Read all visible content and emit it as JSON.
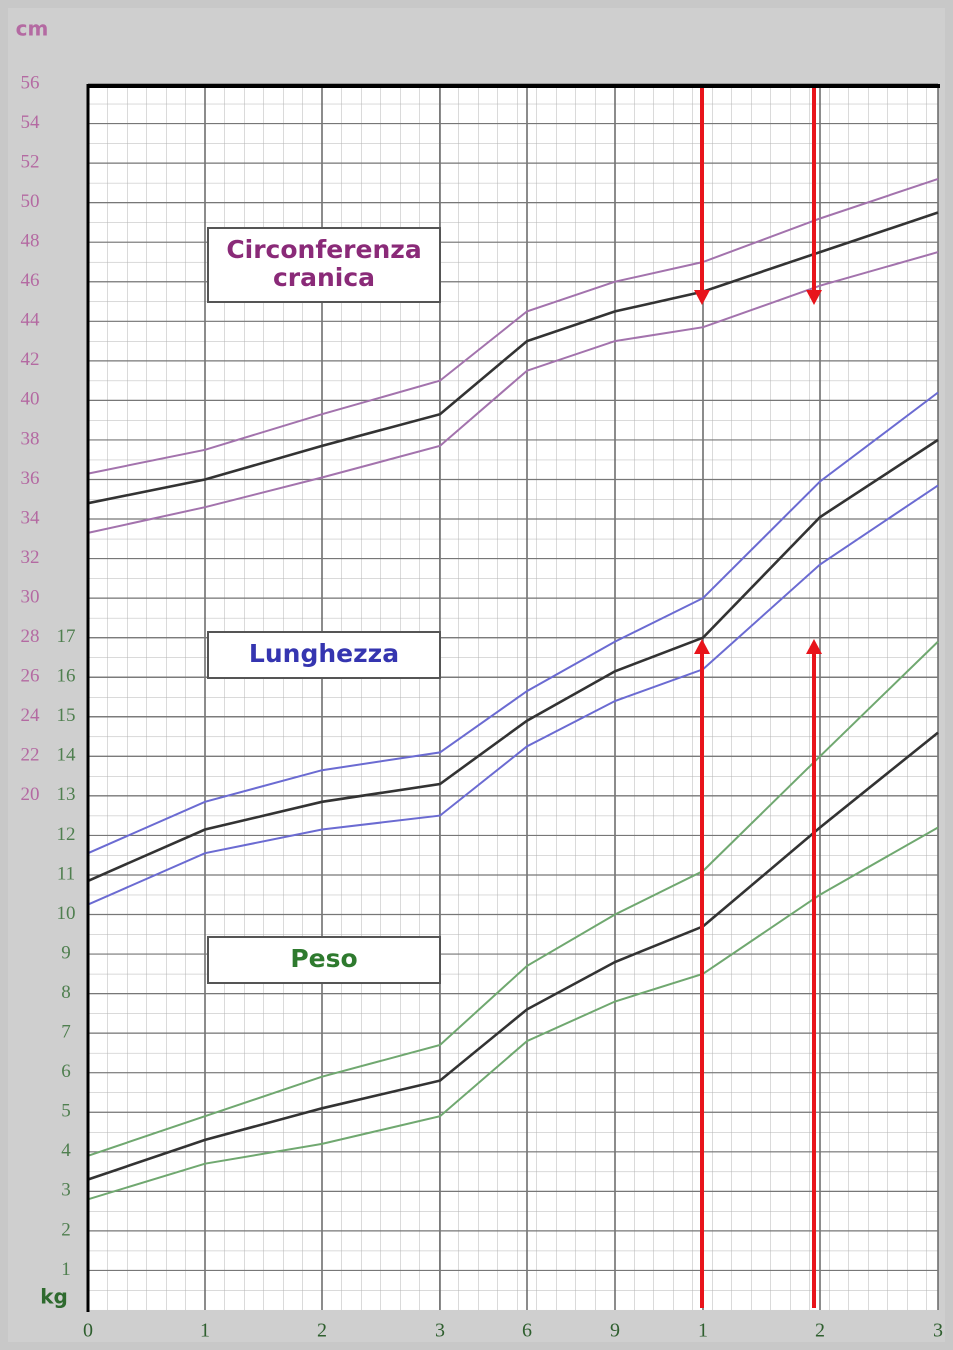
{
  "chart_data": {
    "type": "line",
    "y_unit": "cm",
    "y2_unit": "kg",
    "x": [
      0,
      1,
      2,
      3,
      6,
      9,
      12,
      24,
      36
    ],
    "xlim": [
      0,
      36
    ],
    "xticks": [
      0,
      1,
      2,
      3,
      6,
      9,
      {
        "value": 12,
        "label": "1"
      },
      {
        "value": 24,
        "label": "2"
      },
      {
        "value": 36,
        "label": "3"
      }
    ],
    "ylim": [
      -6,
      56
    ],
    "yticks": [
      20,
      22,
      24,
      26,
      28,
      30,
      32,
      34,
      36,
      38,
      40,
      42,
      44,
      46,
      48,
      50,
      52,
      54,
      56
    ],
    "y2lim": [
      0,
      31
    ],
    "y2ticks": [
      1,
      2,
      3,
      4,
      5,
      6,
      7,
      8,
      9,
      10,
      11,
      12,
      13,
      14,
      15,
      16,
      17
    ],
    "grid": true,
    "annotations": [
      {
        "lines": [
          "Circonferenza",
          "cranica"
        ],
        "color": "#8a2a78"
      },
      {
        "lines": [
          "Lunghezza"
        ],
        "color": "#3535b0"
      },
      {
        "lines": [
          "Peso"
        ],
        "color": "#2e7a2e"
      }
    ],
    "series": [
      {
        "color": "#a373ad",
        "values": [
          36.3,
          37.5,
          39.3,
          41,
          44.5,
          46,
          47,
          49.2,
          51.2
        ]
      },
      {
        "color": "#333333",
        "values": [
          34.8,
          36,
          37.7,
          39.3,
          43,
          44.5,
          45.5,
          47.5,
          49.5
        ]
      },
      {
        "color": "#a373ad",
        "values": [
          33.3,
          34.6,
          36.1,
          37.7,
          41.5,
          43,
          43.7,
          45.8,
          47.5
        ]
      },
      {
        "color": "#6b6bd2",
        "values": [
          17.1,
          19.7,
          21.3,
          22.2,
          25.3,
          27.8,
          30,
          35.9,
          40.4
        ]
      },
      {
        "color": "#333333",
        "values": [
          15.7,
          18.3,
          19.7,
          20.6,
          23.8,
          26.3,
          28,
          34.1,
          38
        ]
      },
      {
        "color": "#6b6bd2",
        "values": [
          14.5,
          17.1,
          18.3,
          19,
          22.5,
          24.8,
          26.4,
          31.7,
          35.7
        ]
      },
      {
        "color": "#70a870",
        "axis": "y2",
        "values": [
          3.9,
          4.9,
          5.9,
          6.7,
          8.7,
          10,
          11.1,
          14,
          16.9
        ]
      },
      {
        "color": "#333333",
        "axis": "y2",
        "values": [
          3.3,
          4.3,
          5.1,
          5.8,
          7.6,
          8.8,
          9.7,
          12.2,
          14.6
        ]
      },
      {
        "color": "#70a870",
        "axis": "y2",
        "values": [
          2.8,
          3.7,
          4.2,
          4.9,
          6.8,
          7.8,
          8.5,
          10.5,
          12.2
        ]
      }
    ]
  }
}
